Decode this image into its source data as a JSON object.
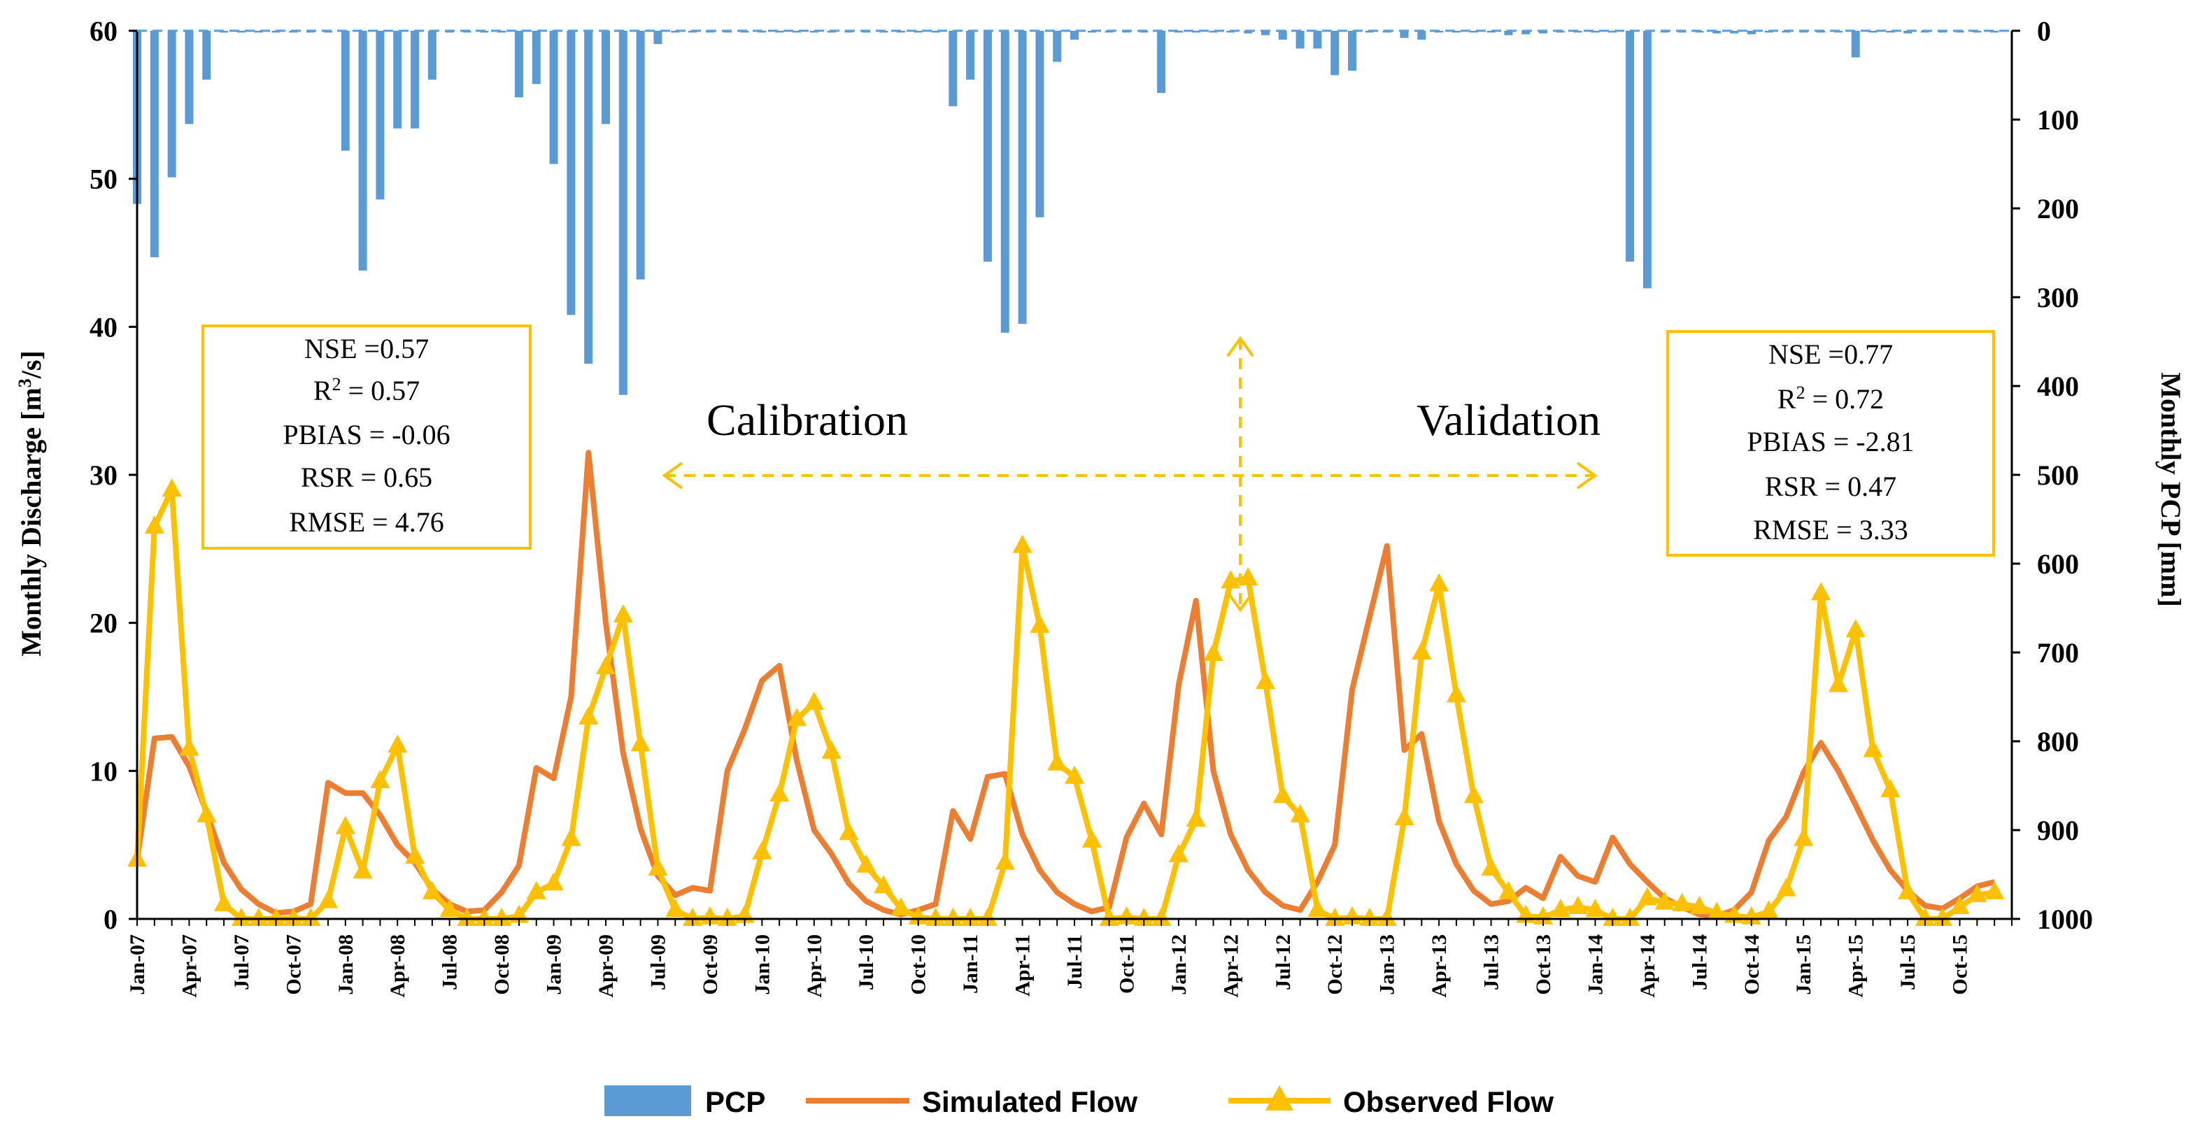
{
  "chart_data": {
    "type": "bar+line",
    "title": "",
    "xlabel": "",
    "ylabel_left": "Monthly Discharge [m",
    "ylabel_left_sup": "3",
    "ylabel_left_tail": "/s]",
    "ylabel_right": "Monthly PCP  [mm]",
    "ylim_left": [
      0,
      60
    ],
    "ylim_right_inverted": [
      0,
      1000
    ],
    "y_ticks_left": [
      "0",
      "10",
      "20",
      "30",
      "40",
      "50",
      "60"
    ],
    "y_ticks_right": [
      "0",
      "100",
      "200",
      "300",
      "400",
      "500",
      "600",
      "700",
      "800",
      "900",
      "1000"
    ],
    "x_tick_labels": [
      "Jan-07",
      "Apr-07",
      "Jul-07",
      "Oct-07",
      "Jan-08",
      "Apr-08",
      "Jul-08",
      "Oct-08",
      "Jan-09",
      "Apr-09",
      "Jul-09",
      "Oct-09",
      "Jan-10",
      "Apr-10",
      "Jul-10",
      "Oct-10",
      "Jan-11",
      "Apr-11",
      "Jul-11",
      "Oct-11",
      "Jan-12",
      "Apr-12",
      "Jul-12",
      "Oct-12",
      "Jan-13",
      "Apr-13",
      "Jul-13",
      "Oct-13",
      "Jan-14",
      "Apr-14",
      "Jul-14",
      "Oct-14",
      "Jan-15",
      "Apr-15",
      "Jul-15",
      "Oct-15"
    ],
    "months": 108,
    "series": [
      {
        "name": "PCP",
        "type": "bar",
        "axis": "right",
        "color": "#5b9bd5",
        "values": [
          195,
          255,
          165,
          105,
          55,
          2,
          2,
          2,
          2,
          2,
          2,
          2,
          135,
          270,
          190,
          110,
          110,
          55,
          2,
          2,
          2,
          2,
          75,
          60,
          150,
          320,
          375,
          105,
          410,
          280,
          15,
          2,
          2,
          2,
          2,
          2,
          2,
          2,
          2,
          2,
          2,
          2,
          2,
          2,
          2,
          2,
          2,
          85,
          55,
          260,
          340,
          330,
          210,
          35,
          10,
          2,
          2,
          2,
          2,
          70,
          2,
          2,
          2,
          2,
          3,
          5,
          10,
          20,
          20,
          50,
          45,
          2,
          2,
          8,
          10,
          2,
          2,
          2,
          2,
          5,
          4,
          3,
          2,
          2,
          2,
          2,
          260,
          290,
          2,
          2,
          2,
          3,
          3,
          4,
          2,
          2,
          2,
          2,
          2,
          30,
          2,
          2,
          3,
          2,
          2,
          2,
          2,
          2
        ]
      },
      {
        "name": "Simulated Flow",
        "type": "line",
        "axis": "left",
        "color": "#ed7d31",
        "values": [
          4,
          12.2,
          12.3,
          10.3,
          7.2,
          3.8,
          2,
          1,
          0.4,
          0.5,
          1,
          9.2,
          8.5,
          8.5,
          7,
          5,
          3.8,
          2,
          1,
          0.5,
          0.6,
          1.8,
          3.6,
          10.2,
          9.5,
          15,
          31.5,
          20,
          11.2,
          6.1,
          2.9,
          1.6,
          2.1,
          1.9,
          10,
          12.8,
          16.1,
          17.1,
          10.7,
          6,
          4.4,
          2.4,
          1.2,
          0.6,
          0.3,
          0.6,
          1,
          7.3,
          5.4,
          9.6,
          9.8,
          5.7,
          3.3,
          1.8,
          1,
          0.5,
          0.8,
          5.5,
          7.8,
          5.7,
          15.8,
          21.5,
          10,
          5.7,
          3.3,
          1.8,
          0.9,
          0.6,
          2.5,
          5,
          15.5,
          20.4,
          25.2,
          11.4,
          12.5,
          6.6,
          3.7,
          1.9,
          1,
          1.2,
          2.1,
          1.4,
          4.2,
          2.9,
          2.5,
          5.5,
          3.7,
          2.5,
          1.4,
          0.8,
          0.3,
          0.2,
          0.6,
          1.8,
          5.3,
          6.9,
          9.9,
          11.9,
          10,
          7.7,
          5.3,
          3.3,
          1.9,
          0.9,
          0.7,
          1.4,
          2.2,
          2.5
        ]
      },
      {
        "name": "Observed Flow",
        "type": "line",
        "axis": "left",
        "color": "#ffc000",
        "values": [
          4,
          26.5,
          29,
          11.5,
          7,
          1,
          0,
          0,
          0,
          0,
          0,
          1.2,
          6.2,
          3.2,
          9.3,
          11.7,
          4.2,
          1.8,
          0.6,
          0,
          0,
          0,
          0.2,
          1.8,
          2.4,
          5.4,
          13.6,
          17,
          20.5,
          11.8,
          3.4,
          0.6,
          0,
          0.1,
          0,
          0.2,
          4.5,
          8.4,
          13.5,
          14.6,
          11.3,
          5.8,
          3.6,
          2.2,
          0.7,
          0.1,
          0,
          0,
          0,
          0,
          3.8,
          25.2,
          19.8,
          10.5,
          9.6,
          5.3,
          0,
          0.1,
          0,
          0,
          4.3,
          6.7,
          17.9,
          22.8,
          23,
          16,
          8.3,
          7,
          0.6,
          0,
          0.1,
          0,
          0,
          6.8,
          18,
          22.6,
          15.1,
          8.3,
          3.4,
          1.8,
          0.2,
          0.1,
          0.6,
          0.8,
          0.6,
          0,
          0,
          1.4,
          1.1,
          1,
          0.8,
          0.4,
          0.2,
          0.1,
          0.5,
          2,
          5.4,
          22,
          15.8,
          19.5,
          11.4,
          8.7,
          1.8,
          0,
          0,
          0.8,
          1.6,
          1.8
        ]
      }
    ],
    "legend": [
      "PCP",
      "Simulated Flow",
      "Observed Flow"
    ],
    "legend_position": "bottom",
    "annotations": {
      "calibration": "Calibration",
      "validation": "Validation",
      "calibration_stats": [
        "NSE =0.57",
        "R",
        "2",
        " = 0.57",
        "PBIAS = -0.06",
        "RSR = 0.65",
        "RMSE = 4.76"
      ],
      "validation_stats": [
        "NSE =0.77",
        "R",
        "2",
        " = 0.72",
        "PBIAS = -2.81",
        "RSR = 0.47",
        "RMSE = 3.33"
      ]
    }
  },
  "colors": {
    "pcp": "#5b9bd5",
    "simulated": "#ed7d31",
    "observed": "#ffc000",
    "box": "#ffc000",
    "axis": "#000000"
  }
}
